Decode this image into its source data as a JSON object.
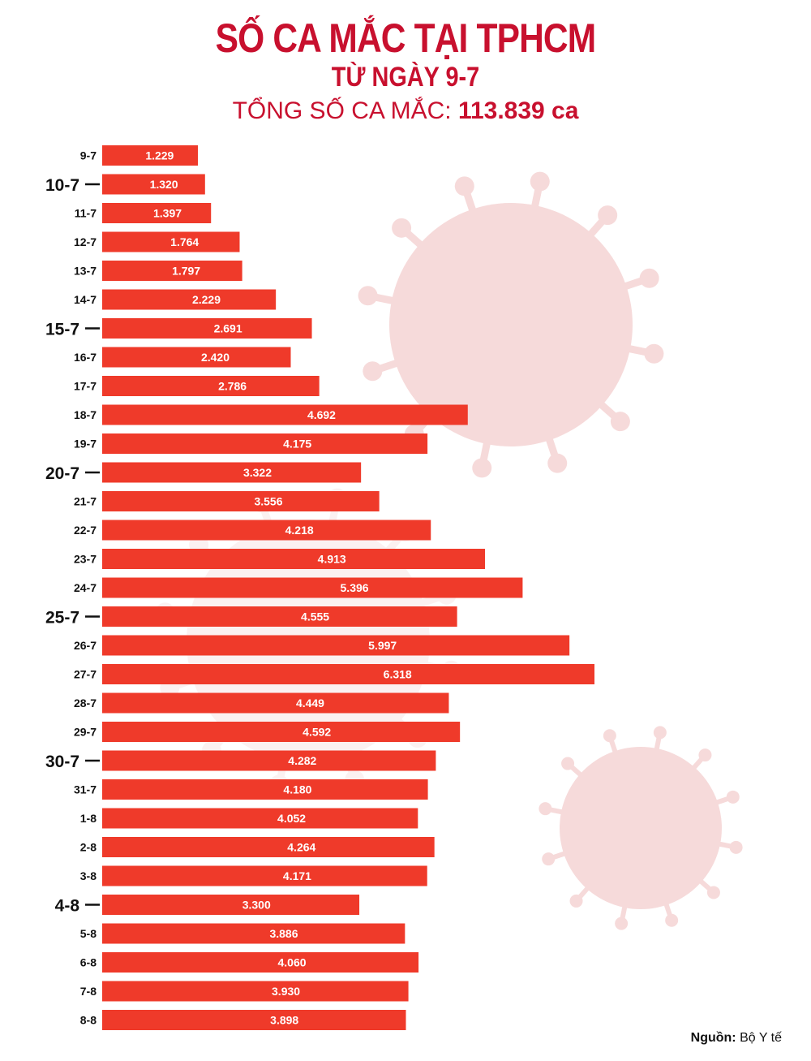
{
  "header": {
    "title": "SỐ CA MẮC TẠI TPHCM",
    "subtitle": "TỪ NGÀY 9-7",
    "total_label": "TỔNG SỐ CA MẮC:",
    "total_value": "113.839 ca"
  },
  "source": {
    "label": "Nguồn:",
    "value": "Bộ Y tế"
  },
  "colors": {
    "bar": "#ef3a2a",
    "title": "#c8102e",
    "virus": "#f6dada"
  },
  "chart_data": {
    "type": "bar",
    "orientation": "horizontal",
    "categories": [
      "9-7",
      "10-7",
      "11-7",
      "12-7",
      "13-7",
      "14-7",
      "15-7",
      "16-7",
      "17-7",
      "18-7",
      "19-7",
      "20-7",
      "21-7",
      "22-7",
      "23-7",
      "24-7",
      "25-7",
      "26-7",
      "27-7",
      "28-7",
      "29-7",
      "30-7",
      "31-7",
      "1-8",
      "2-8",
      "3-8",
      "4-8",
      "5-8",
      "6-8",
      "7-8",
      "8-8"
    ],
    "values": [
      1229,
      1320,
      1397,
      1764,
      1797,
      2229,
      2691,
      2420,
      2786,
      4692,
      4175,
      3322,
      3556,
      4218,
      4913,
      5396,
      4555,
      5997,
      6318,
      4449,
      4592,
      4282,
      4180,
      4052,
      4264,
      4171,
      3300,
      3886,
      4060,
      3930,
      3898
    ],
    "value_labels": [
      "1.229",
      "1.320",
      "1.397",
      "1.764",
      "1.797",
      "2.229",
      "2.691",
      "2.420",
      "2.786",
      "4.692",
      "4.175",
      "3.322",
      "3.556",
      "4.218",
      "4.913",
      "5.396",
      "4.555",
      "5.997",
      "6.318",
      "4.449",
      "4.592",
      "4.282",
      "4.180",
      "4.052",
      "4.264",
      "4.171",
      "3.300",
      "3.886",
      "4.060",
      "3.930",
      "3.898"
    ],
    "highlighted_categories": [
      "10-7",
      "15-7",
      "20-7",
      "25-7",
      "30-7",
      "4-8"
    ],
    "xlim": [
      0,
      6318
    ],
    "legend": "none",
    "grid": false
  }
}
